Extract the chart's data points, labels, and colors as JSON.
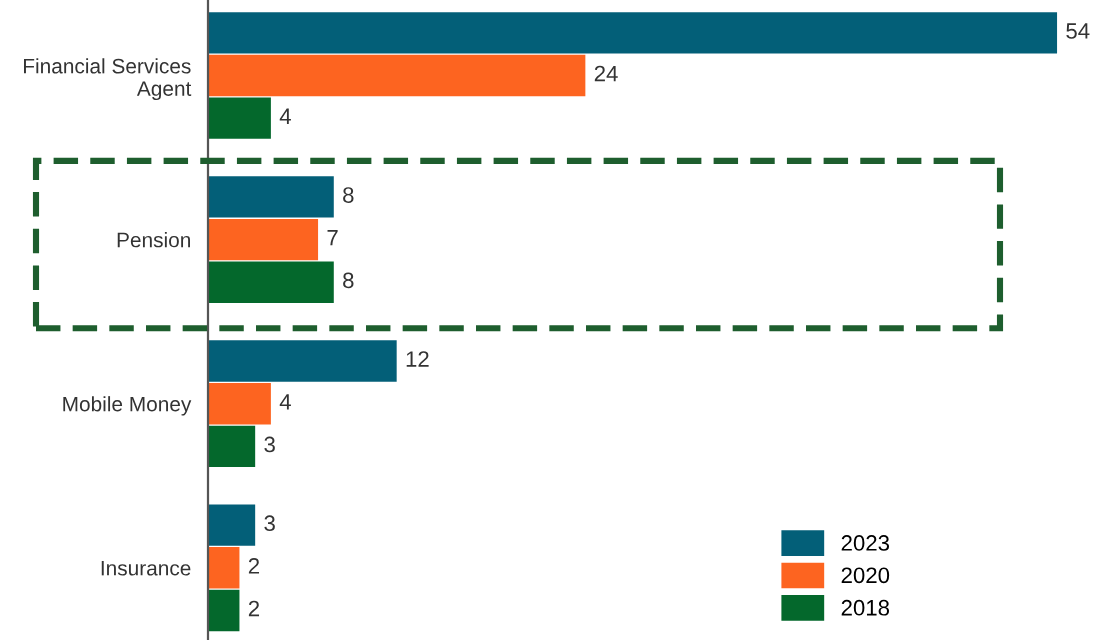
{
  "chart_data": {
    "type": "bar",
    "orientation": "horizontal",
    "categories": [
      "Financial Services Agent",
      "Pension",
      "Mobile Money",
      "Insurance"
    ],
    "series": [
      {
        "name": "2023",
        "color": "#035f78",
        "values": [
          54,
          8,
          12,
          3
        ]
      },
      {
        "name": "2020",
        "color": "#fd6420",
        "values": [
          24,
          7,
          4,
          2
        ]
      },
      {
        "name": "2018",
        "color": "#04682c",
        "values": [
          4,
          8,
          3,
          2
        ]
      }
    ],
    "data_labels": true,
    "legend": "bottom right",
    "grid": false
  }
}
